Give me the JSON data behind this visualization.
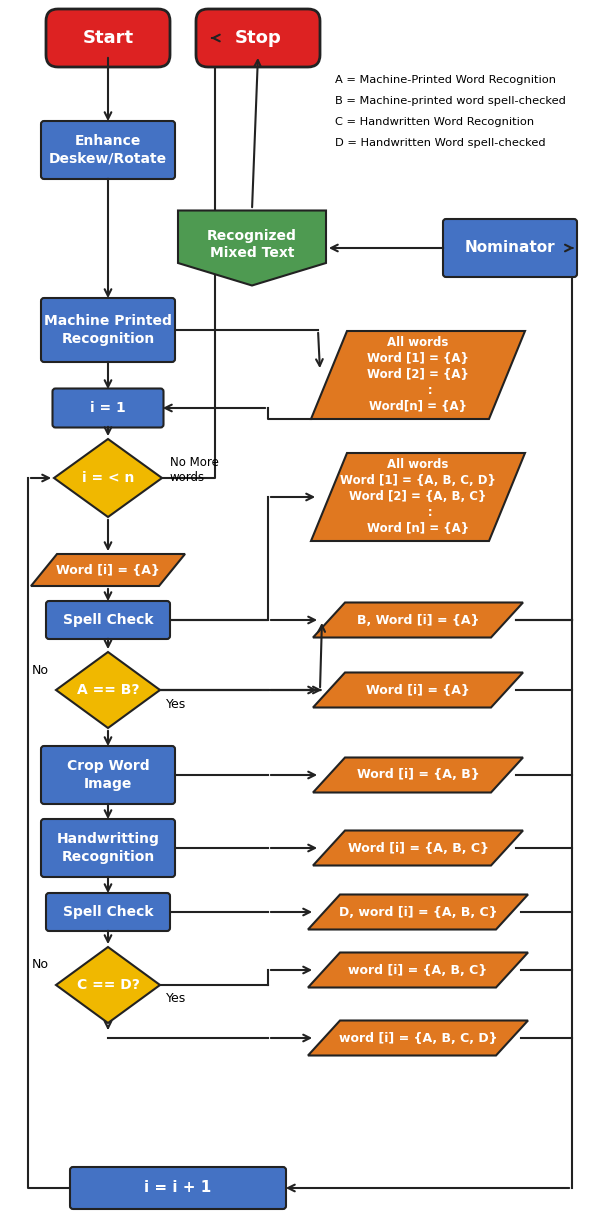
{
  "colors": {
    "red": "#dd2222",
    "blue": "#4472c4",
    "orange": "#e07820",
    "yellow": "#f0b800",
    "green": "#4e9a51",
    "white": "#ffffff",
    "black": "#000000",
    "bg": "#ffffff"
  },
  "legend_text": [
    "A = Machine-Printed Word Recognition",
    "B = Machine-printed word spell-checked",
    "C = Handwritten Word Recognition",
    "D = Handwritten Word spell-checked"
  ]
}
